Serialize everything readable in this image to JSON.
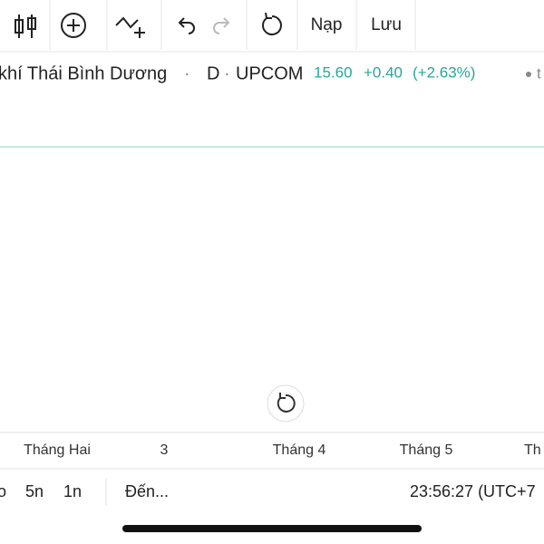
{
  "toolbar": {
    "buttons": [
      "Nạp",
      "Lưu"
    ]
  },
  "header": {
    "name": "khí Thái Bình Dương",
    "separator": "·",
    "interval": "D",
    "exchange": "UPCOM",
    "price": "15.60",
    "change": "+0.40",
    "change_percent": "(+2.63%)"
  },
  "x_axis": {
    "labels": [
      "Tháng Hai",
      "3",
      "Tháng 4",
      "Tháng 5",
      "Th"
    ]
  },
  "bottom_bar": {
    "ranges": [
      "o",
      "5n",
      "1n"
    ],
    "goto": "Đến...",
    "clock": "23:56:27 (UTC+7"
  }
}
